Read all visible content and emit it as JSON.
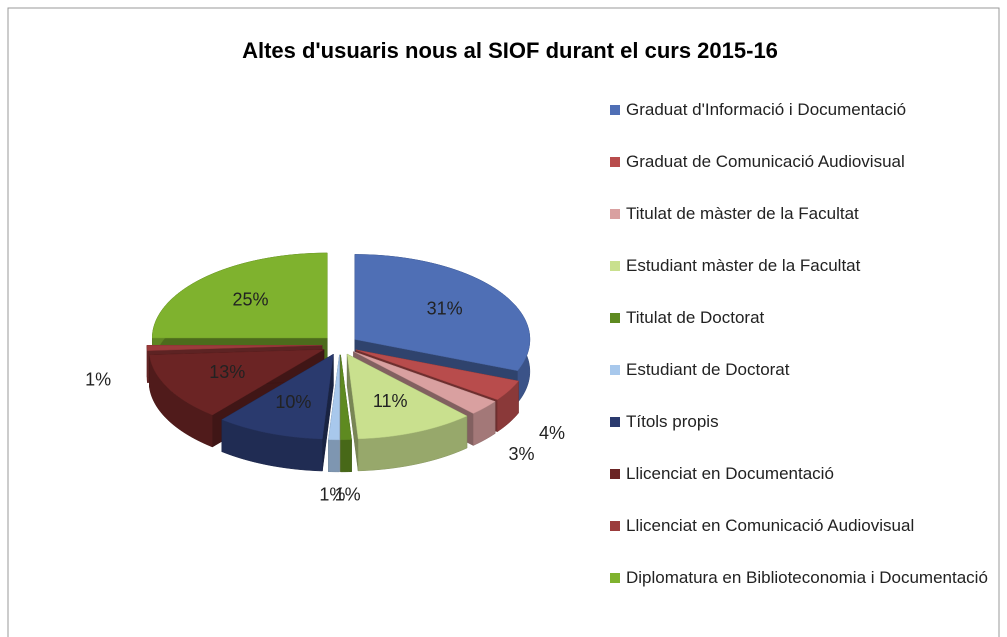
{
  "chart_data": {
    "type": "pie3d",
    "title": "Altes d'usuaris nous al SIOF durant el curs 2015-16",
    "categories": [
      "Graduat d'Informació i Documentació",
      "Graduat de Comunicació Audiovisual",
      "Titulat de màster de la Facultat",
      "Estudiant màster de la Facultat",
      "Titulat de Doctorat",
      "Estudiant de Doctorat",
      "Títols propis",
      "Llicenciat en Documentació",
      "Llicenciat en Comunicació Audiovisual",
      "Diplomatura en Biblioteconomia i Documentació"
    ],
    "values": [
      31,
      4,
      3,
      11,
      1,
      1,
      10,
      13,
      1,
      25
    ],
    "value_labels": [
      "31%",
      "4%",
      "3%",
      "11%",
      "1%",
      "1%",
      "10%",
      "13%",
      "1%",
      "25%"
    ],
    "colors": [
      "#4f6fb5",
      "#b84c4c",
      "#d9a0a0",
      "#c9e08e",
      "#5e8a20",
      "#a8c8ec",
      "#2a3a6e",
      "#6b2424",
      "#9b3b3b",
      "#7fb22e"
    ],
    "legend": "right"
  }
}
